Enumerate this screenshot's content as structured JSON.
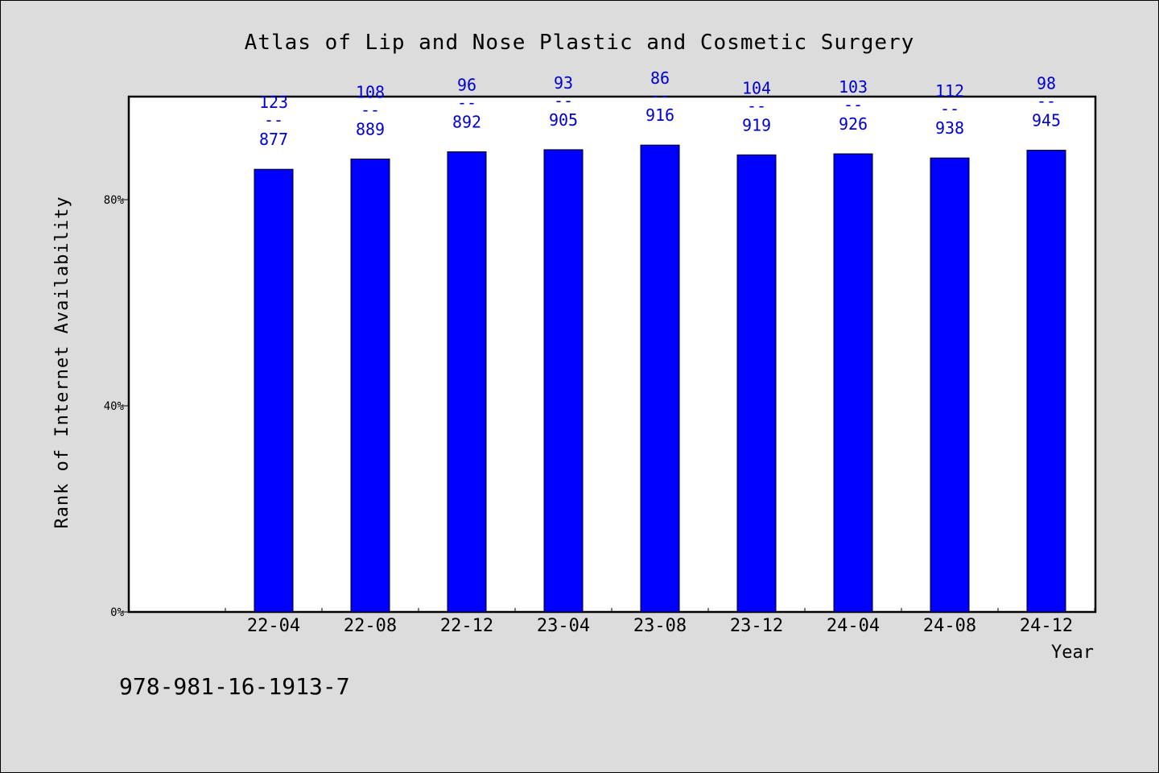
{
  "chart_data": {
    "type": "bar",
    "title": "Atlas of Lip and Nose Plastic and Cosmetic Surgery",
    "xlabel": "Year",
    "ylabel": "Rank of Internet Availability",
    "categories": [
      "22-04",
      "22-08",
      "22-12",
      "23-04",
      "23-08",
      "23-12",
      "24-04",
      "24-08",
      "24-12"
    ],
    "values": [
      85.9,
      87.9,
      89.3,
      89.7,
      90.6,
      88.7,
      88.9,
      88.1,
      89.6
    ],
    "ranks": [
      123,
      108,
      96,
      93,
      86,
      104,
      103,
      112,
      98
    ],
    "totals": [
      877,
      889,
      892,
      905,
      916,
      919,
      926,
      938,
      945
    ],
    "separator": "--",
    "ylim": [
      0,
      100
    ],
    "yticks": [
      0,
      40,
      80
    ],
    "ytick_labels": [
      "0%",
      "40%",
      "80%"
    ],
    "bar_color": "#0000ff",
    "label_color": "#0000cc",
    "grid": false,
    "legend": "none"
  },
  "footer": {
    "isbn": "978-981-16-1913-7"
  }
}
